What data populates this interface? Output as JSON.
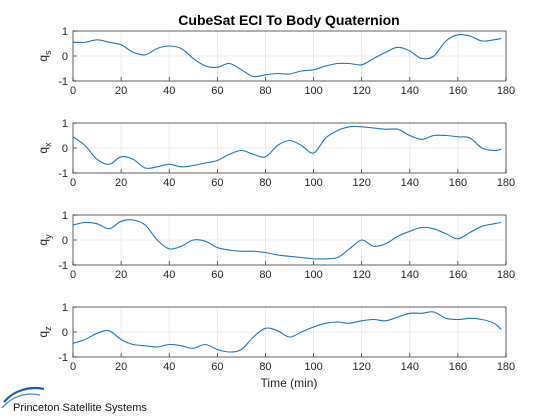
{
  "figure": {
    "title": "CubeSat ECI To Body Quaternion",
    "xlabel": "Time (min)",
    "brand": "Princeton Satellite Systems"
  },
  "colors": {
    "line": "#1f77b4",
    "grid": "#e6e6e6",
    "axes": "#262626",
    "brand_arc": "#1a5fa8"
  },
  "chart_data": [
    {
      "type": "line",
      "ylabel_main": "q",
      "ylabel_sub": "s",
      "xlim": [
        0,
        180
      ],
      "ylim": [
        -1,
        1
      ],
      "xticks": [
        "0",
        "20",
        "40",
        "60",
        "80",
        "100",
        "120",
        "140",
        "160",
        "180"
      ],
      "yticks": [
        "1",
        "0",
        "-1"
      ],
      "grid": true,
      "x": [
        0,
        5,
        10,
        15,
        20,
        25,
        30,
        35,
        40,
        45,
        50,
        55,
        60,
        65,
        70,
        75,
        80,
        85,
        90,
        95,
        100,
        105,
        110,
        115,
        120,
        125,
        130,
        135,
        140,
        145,
        150,
        155,
        160,
        165,
        170,
        175,
        178
      ],
      "values": [
        0.55,
        0.55,
        0.65,
        0.55,
        0.45,
        0.15,
        0.05,
        0.3,
        0.4,
        0.3,
        -0.1,
        -0.4,
        -0.45,
        -0.3,
        -0.55,
        -0.82,
        -0.75,
        -0.7,
        -0.72,
        -0.6,
        -0.55,
        -0.4,
        -0.3,
        -0.3,
        -0.35,
        -0.1,
        0.15,
        0.35,
        0.2,
        -0.1,
        0.0,
        0.6,
        0.85,
        0.8,
        0.6,
        0.65,
        0.7
      ]
    },
    {
      "type": "line",
      "ylabel_main": "q",
      "ylabel_sub": "x",
      "xlim": [
        0,
        180
      ],
      "ylim": [
        -1,
        1
      ],
      "xticks": [
        "0",
        "20",
        "40",
        "60",
        "80",
        "100",
        "120",
        "140",
        "160",
        "180"
      ],
      "yticks": [
        "1",
        "0",
        "-1"
      ],
      "grid": true,
      "x": [
        0,
        5,
        10,
        15,
        20,
        25,
        30,
        35,
        40,
        45,
        50,
        55,
        60,
        65,
        70,
        75,
        80,
        85,
        90,
        95,
        100,
        105,
        110,
        115,
        120,
        125,
        130,
        135,
        140,
        145,
        150,
        155,
        160,
        165,
        170,
        175,
        178
      ],
      "values": [
        0.45,
        0.1,
        -0.45,
        -0.65,
        -0.35,
        -0.45,
        -0.8,
        -0.75,
        -0.65,
        -0.75,
        -0.7,
        -0.6,
        -0.5,
        -0.25,
        -0.1,
        -0.25,
        -0.35,
        0.1,
        0.3,
        0.1,
        -0.2,
        0.4,
        0.7,
        0.85,
        0.85,
        0.8,
        0.75,
        0.75,
        0.5,
        0.35,
        0.5,
        0.5,
        0.45,
        0.4,
        0.0,
        -0.1,
        -0.05
      ]
    },
    {
      "type": "line",
      "ylabel_main": "q",
      "ylabel_sub": "y",
      "xlim": [
        0,
        180
      ],
      "ylim": [
        -1,
        1
      ],
      "xticks": [
        "0",
        "20",
        "40",
        "60",
        "80",
        "100",
        "120",
        "140",
        "160",
        "180"
      ],
      "yticks": [
        "1",
        "0",
        "-1"
      ],
      "grid": true,
      "x": [
        0,
        5,
        10,
        15,
        20,
        25,
        30,
        35,
        40,
        45,
        50,
        55,
        60,
        65,
        70,
        75,
        80,
        85,
        90,
        95,
        100,
        105,
        110,
        115,
        120,
        125,
        130,
        135,
        140,
        145,
        150,
        155,
        160,
        165,
        170,
        175,
        178
      ],
      "values": [
        0.6,
        0.7,
        0.65,
        0.45,
        0.75,
        0.8,
        0.6,
        0.0,
        -0.35,
        -0.25,
        0.0,
        -0.05,
        -0.3,
        -0.4,
        -0.45,
        -0.45,
        -0.5,
        -0.6,
        -0.65,
        -0.7,
        -0.75,
        -0.75,
        -0.7,
        -0.35,
        0.0,
        -0.25,
        -0.15,
        0.15,
        0.35,
        0.5,
        0.45,
        0.25,
        0.05,
        0.3,
        0.55,
        0.65,
        0.7
      ]
    },
    {
      "type": "line",
      "ylabel_main": "q",
      "ylabel_sub": "z",
      "xlim": [
        0,
        180
      ],
      "ylim": [
        -1,
        1
      ],
      "xticks": [
        "0",
        "20",
        "40",
        "60",
        "80",
        "100",
        "120",
        "140",
        "160",
        "180"
      ],
      "yticks": [
        "1",
        "0",
        "-1"
      ],
      "grid": true,
      "x": [
        0,
        5,
        10,
        15,
        20,
        25,
        30,
        35,
        40,
        45,
        50,
        55,
        60,
        65,
        70,
        75,
        80,
        85,
        90,
        95,
        100,
        105,
        110,
        115,
        120,
        125,
        130,
        135,
        140,
        145,
        150,
        155,
        160,
        165,
        170,
        175,
        178
      ],
      "values": [
        -0.45,
        -0.3,
        -0.05,
        0.05,
        -0.3,
        -0.5,
        -0.55,
        -0.6,
        -0.5,
        -0.55,
        -0.65,
        -0.5,
        -0.7,
        -0.8,
        -0.7,
        -0.2,
        0.15,
        0.05,
        -0.2,
        0.0,
        0.2,
        0.35,
        0.4,
        0.35,
        0.45,
        0.5,
        0.45,
        0.6,
        0.75,
        0.75,
        0.8,
        0.55,
        0.5,
        0.55,
        0.5,
        0.35,
        0.1
      ]
    }
  ]
}
